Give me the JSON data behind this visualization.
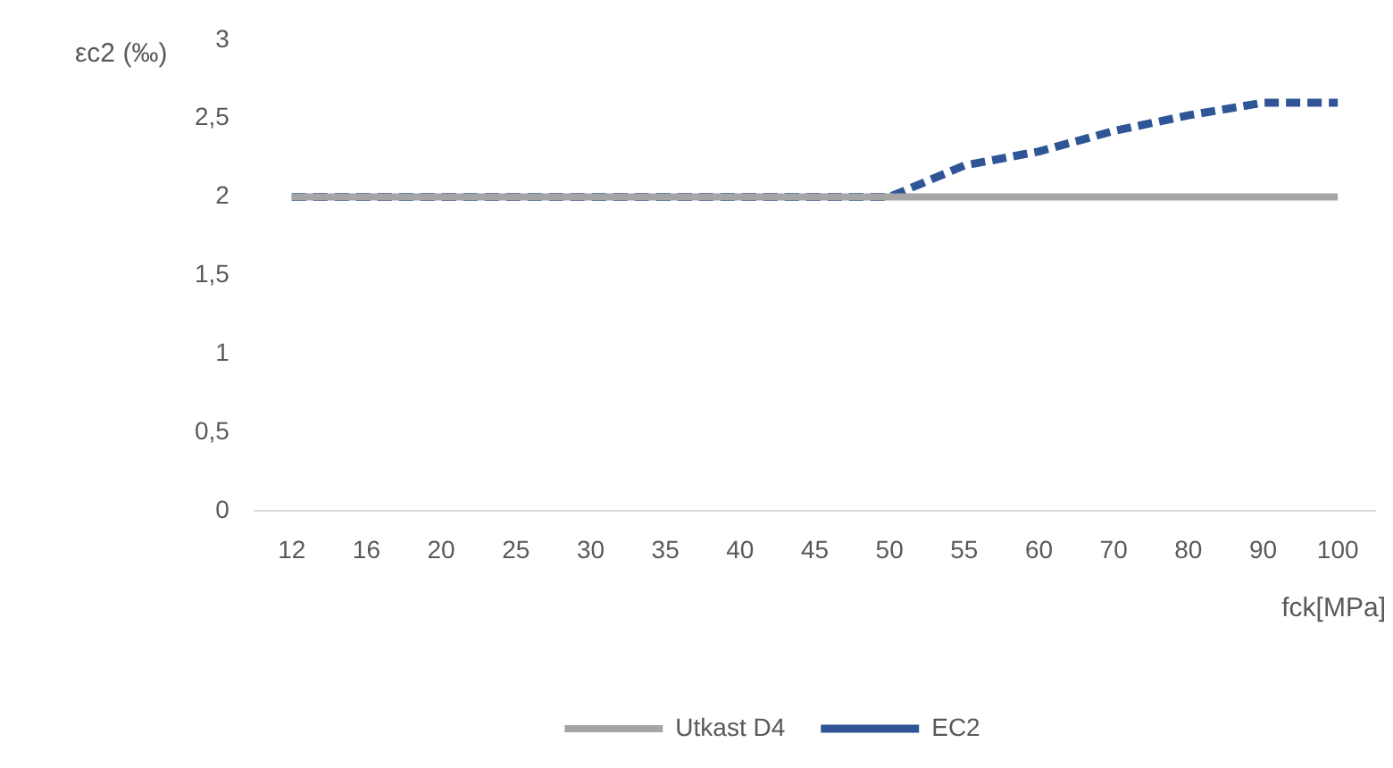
{
  "chart_data": {
    "type": "line",
    "xlabel": "fck[MPa]",
    "ylabel": "εc2 (‰)",
    "categories": [
      "12",
      "16",
      "20",
      "25",
      "30",
      "35",
      "40",
      "45",
      "50",
      "55",
      "60",
      "70",
      "80",
      "90",
      "100"
    ],
    "series": [
      {
        "name": "Utkast D4",
        "color": "#a5a5a5",
        "line_style": "solid",
        "values": [
          2,
          2,
          2,
          2,
          2,
          2,
          2,
          2,
          2,
          2,
          2,
          2,
          2,
          2,
          2
        ]
      },
      {
        "name": "EC2",
        "color": "#2f5597",
        "line_style": "dashed",
        "values": [
          2,
          2,
          2,
          2,
          2,
          2,
          2,
          2,
          2,
          2.2,
          2.29,
          2.42,
          2.52,
          2.6,
          2.6
        ]
      }
    ],
    "ylim": [
      0,
      3
    ],
    "yticks": [
      0,
      {
        "value": 0.5,
        "label": "0,5"
      },
      1,
      {
        "value": 1.5,
        "label": "1,5"
      },
      2,
      {
        "value": 2.5,
        "label": "2,5"
      },
      3
    ],
    "legend": "bottom",
    "marker": "none"
  }
}
